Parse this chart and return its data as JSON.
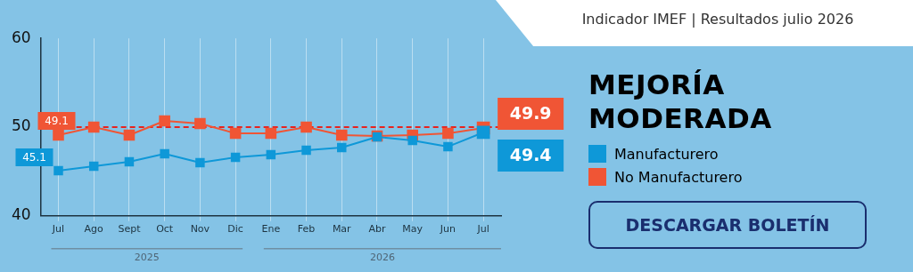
{
  "chart_data": {
    "type": "line",
    "title": "Indicador IMEF | Resultados julio 2026",
    "subtitle": "MEJORÍA MODERADA",
    "categories": [
      "Jul",
      "Ago",
      "Sept",
      "Oct",
      "Nov",
      "Dic",
      "Ene",
      "Feb",
      "Mar",
      "Abr",
      "May",
      "Jun",
      "Jul"
    ],
    "series": [
      {
        "name": "Manufacturero",
        "color": "#0e98d8",
        "values": [
          45.1,
          45.6,
          46.1,
          47.0,
          46.0,
          46.6,
          46.9,
          47.4,
          47.7,
          48.9,
          48.5,
          47.8,
          49.4
        ],
        "value_labels": [
          "45.1",
          null,
          null,
          null,
          null,
          null,
          null,
          null,
          null,
          null,
          null,
          null,
          "49.4"
        ]
      },
      {
        "name": "No Manufacturero",
        "color": "#f05535",
        "values": [
          49.1,
          50.0,
          49.1,
          50.7,
          50.4,
          49.3,
          49.3,
          50.0,
          49.1,
          49.0,
          49.1,
          49.3,
          49.9
        ],
        "value_labels": [
          "49.1",
          null,
          null,
          null,
          null,
          null,
          null,
          null,
          null,
          null,
          null,
          null,
          "49.9"
        ]
      }
    ],
    "ylim": [
      40,
      60
    ],
    "yticks": [
      40,
      50,
      60
    ],
    "grid": "x",
    "legend": "right",
    "marker": "square",
    "line_style": "solid",
    "ref_lines": [
      {
        "axis": "y",
        "value": 50,
        "color": "#e8221e",
        "line_style": "dashed"
      }
    ],
    "annotations": [
      "2025",
      "2026",
      "DESCARGAR BOLETÍN"
    ]
  }
}
